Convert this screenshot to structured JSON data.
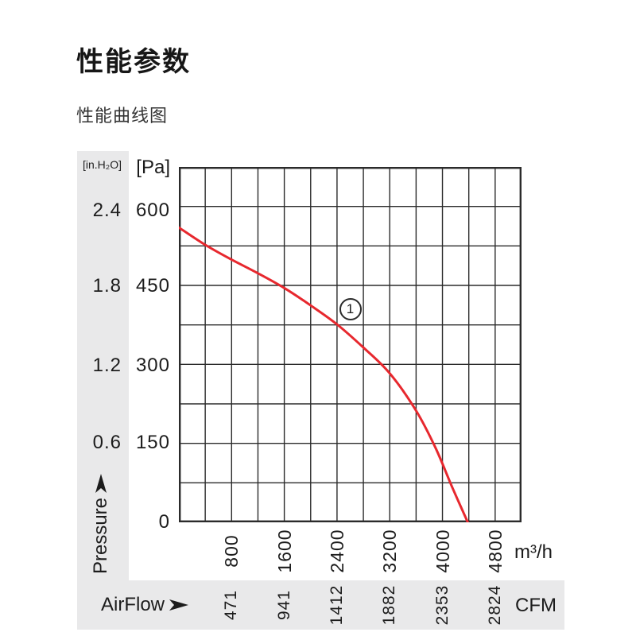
{
  "page": {
    "title": "性能参数",
    "subtitle": "性能曲线图"
  },
  "pressure_axis": {
    "unit_inh2o": "[in.H₂O]",
    "unit_pa": "[Pa]",
    "axis_label": "Pressure",
    "pa_ticks": [
      "600",
      "450",
      "300",
      "150"
    ],
    "pa_zero": "0",
    "inh2o_ticks": [
      "2.4",
      "1.8",
      "1.2",
      "0.6"
    ]
  },
  "airflow_axis": {
    "axis_label": "AirFlow",
    "m3h_ticks": [
      "800",
      "1600",
      "2400",
      "3200",
      "4000",
      "4800"
    ],
    "cfm_ticks": [
      "471",
      "941",
      "1412",
      "1882",
      "2353",
      "2824"
    ],
    "unit_m3h": "m³/h",
    "unit_cfm": "CFM"
  },
  "curve_badge": "1",
  "colors": {
    "curve": "#e7282e",
    "grid": "#2b2b2b",
    "panel": "#e9e9ea",
    "text": "#1c1c1c"
  },
  "chart_data": {
    "type": "line",
    "title": "性能曲线图",
    "xlabel": "AirFlow",
    "ylabel": "Pressure",
    "x_unit_primary": "m³/h",
    "x_unit_secondary": "CFM",
    "y_unit_primary": "Pa",
    "y_unit_secondary": "in.H₂O",
    "xlim": [
      0,
      5200
    ],
    "ylim": [
      0,
      675
    ],
    "x_grid_step": 400,
    "y_grid_step": 75,
    "x_ticks_m3h": [
      800,
      1600,
      2400,
      3200,
      4000,
      4800
    ],
    "x_ticks_cfm": [
      471,
      941,
      1412,
      1882,
      2353,
      2824
    ],
    "y_ticks_pa": [
      0,
      150,
      300,
      450,
      600
    ],
    "y_ticks_inh2o": [
      0.6,
      1.2,
      1.8,
      2.4
    ],
    "grid": true,
    "legend": false,
    "series": [
      {
        "name": "①",
        "x": [
          0,
          400,
          800,
          1200,
          1600,
          2000,
          2400,
          2800,
          3200,
          3600,
          3900,
          4150,
          4385
        ],
        "y": [
          560,
          527,
          499,
          473,
          445,
          412,
          376,
          332,
          283,
          212,
          140,
          66,
          0
        ],
        "color": "#e7282e"
      }
    ],
    "annotation": {
      "label": "1",
      "x": 2600,
      "y": 405
    }
  }
}
